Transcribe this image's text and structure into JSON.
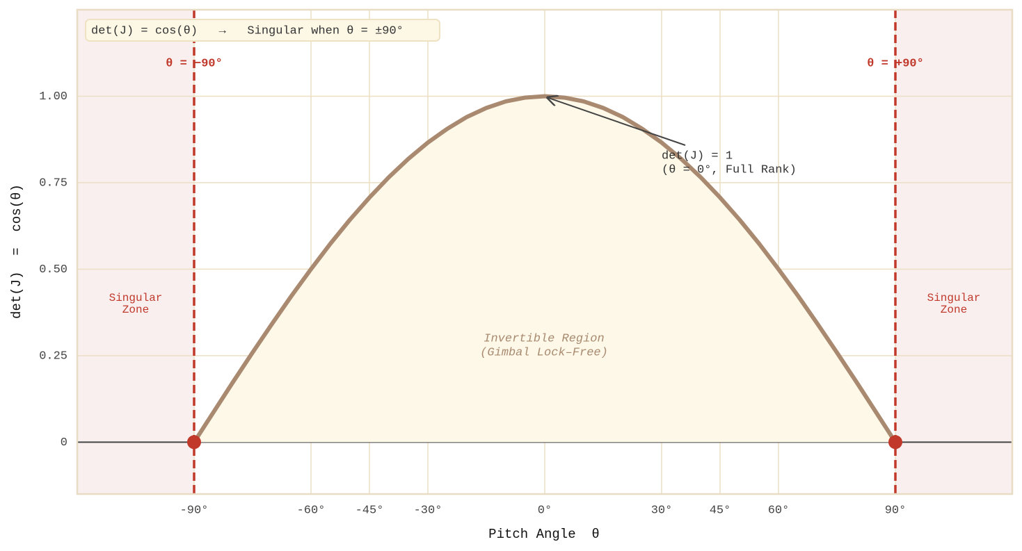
{
  "chart_data": {
    "type": "line",
    "xlabel": "Pitch Angle  θ",
    "ylabel": "det(J)  =  cos(θ)",
    "x": [
      -90,
      -85,
      -80,
      -75,
      -70,
      -65,
      -60,
      -55,
      -50,
      -45,
      -40,
      -35,
      -30,
      -25,
      -20,
      -15,
      -10,
      -5,
      0,
      5,
      10,
      15,
      20,
      25,
      30,
      35,
      40,
      45,
      50,
      55,
      60,
      65,
      70,
      75,
      80,
      85,
      90
    ],
    "values": [
      0,
      0.087,
      0.174,
      0.259,
      0.342,
      0.423,
      0.5,
      0.574,
      0.643,
      0.707,
      0.766,
      0.819,
      0.866,
      0.906,
      0.94,
      0.966,
      0.985,
      0.996,
      1,
      0.996,
      0.985,
      0.966,
      0.94,
      0.906,
      0.866,
      0.819,
      0.766,
      0.707,
      0.643,
      0.574,
      0.5,
      0.423,
      0.342,
      0.259,
      0.174,
      0.087,
      0
    ],
    "color": "#a98a70",
    "fill_color": "#fdf8e8",
    "xlim": [
      -120,
      120
    ],
    "ylim": [
      -0.15,
      1.25
    ],
    "xticks": [
      {
        "value": -90,
        "label": "-90°"
      },
      {
        "value": -60,
        "label": "-60°"
      },
      {
        "value": -45,
        "label": "-45°"
      },
      {
        "value": -30,
        "label": "-30°"
      },
      {
        "value": 0,
        "label": "0°"
      },
      {
        "value": 30,
        "label": "30°"
      },
      {
        "value": 45,
        "label": "45°"
      },
      {
        "value": 60,
        "label": "60°"
      },
      {
        "value": 90,
        "label": "90°"
      }
    ],
    "yticks": [
      0,
      0.25,
      {
        "value": 0.5,
        "label": "0.50"
      },
      0.75,
      {
        "value": 1,
        "label": "1.00"
      }
    ],
    "grid": true,
    "singular_points": {
      "x": [
        -90,
        90
      ],
      "y": [
        0,
        0
      ],
      "color": "#c0392b",
      "labels": [
        "θ = −90°",
        "θ = +90°"
      ]
    },
    "singular_zone_label": [
      "Singular",
      "Zone"
    ],
    "formula_box": "det(J) = cos(θ)   →   Singular when θ = ±90°",
    "region_label": [
      "Invertible Region",
      "(Gimbal Lock–Free)"
    ],
    "annotation": {
      "text": [
        "det(J) = 1",
        "(θ = 0°, Full Rank)"
      ],
      "x": 0,
      "y": 1
    }
  }
}
